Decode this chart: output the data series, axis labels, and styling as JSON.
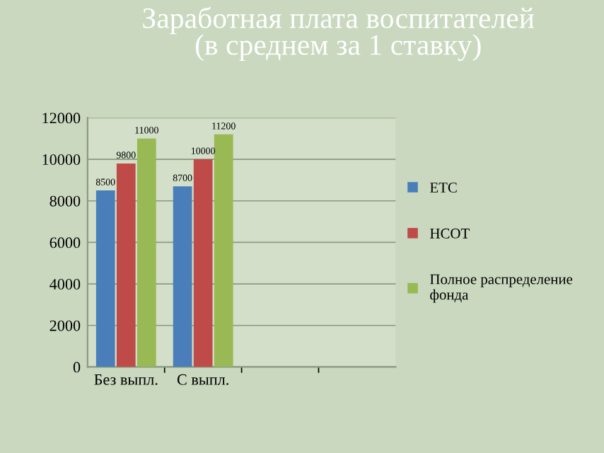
{
  "chart_data": {
    "type": "bar",
    "title": "Заработная плата воспитателей\n(в среднем за 1 ставку)",
    "categories": [
      "Без выпл.",
      "С выпл.",
      null,
      null
    ],
    "series": [
      {
        "name": "ЕТС",
        "color": "#4a7ebb",
        "values": [
          8500,
          8700,
          null,
          null
        ]
      },
      {
        "name": "НСОТ",
        "color": "#be4b48",
        "values": [
          9800,
          10000,
          null,
          null
        ]
      },
      {
        "name": "Полное распределение\nфонда",
        "color": "#98b954",
        "values": [
          11000,
          11200,
          null,
          null
        ]
      }
    ],
    "ylim": [
      0,
      12000
    ],
    "yticks": [
      0,
      2000,
      4000,
      6000,
      8000,
      10000,
      12000
    ],
    "grid": "y",
    "legend": "right",
    "data_labels": true
  }
}
